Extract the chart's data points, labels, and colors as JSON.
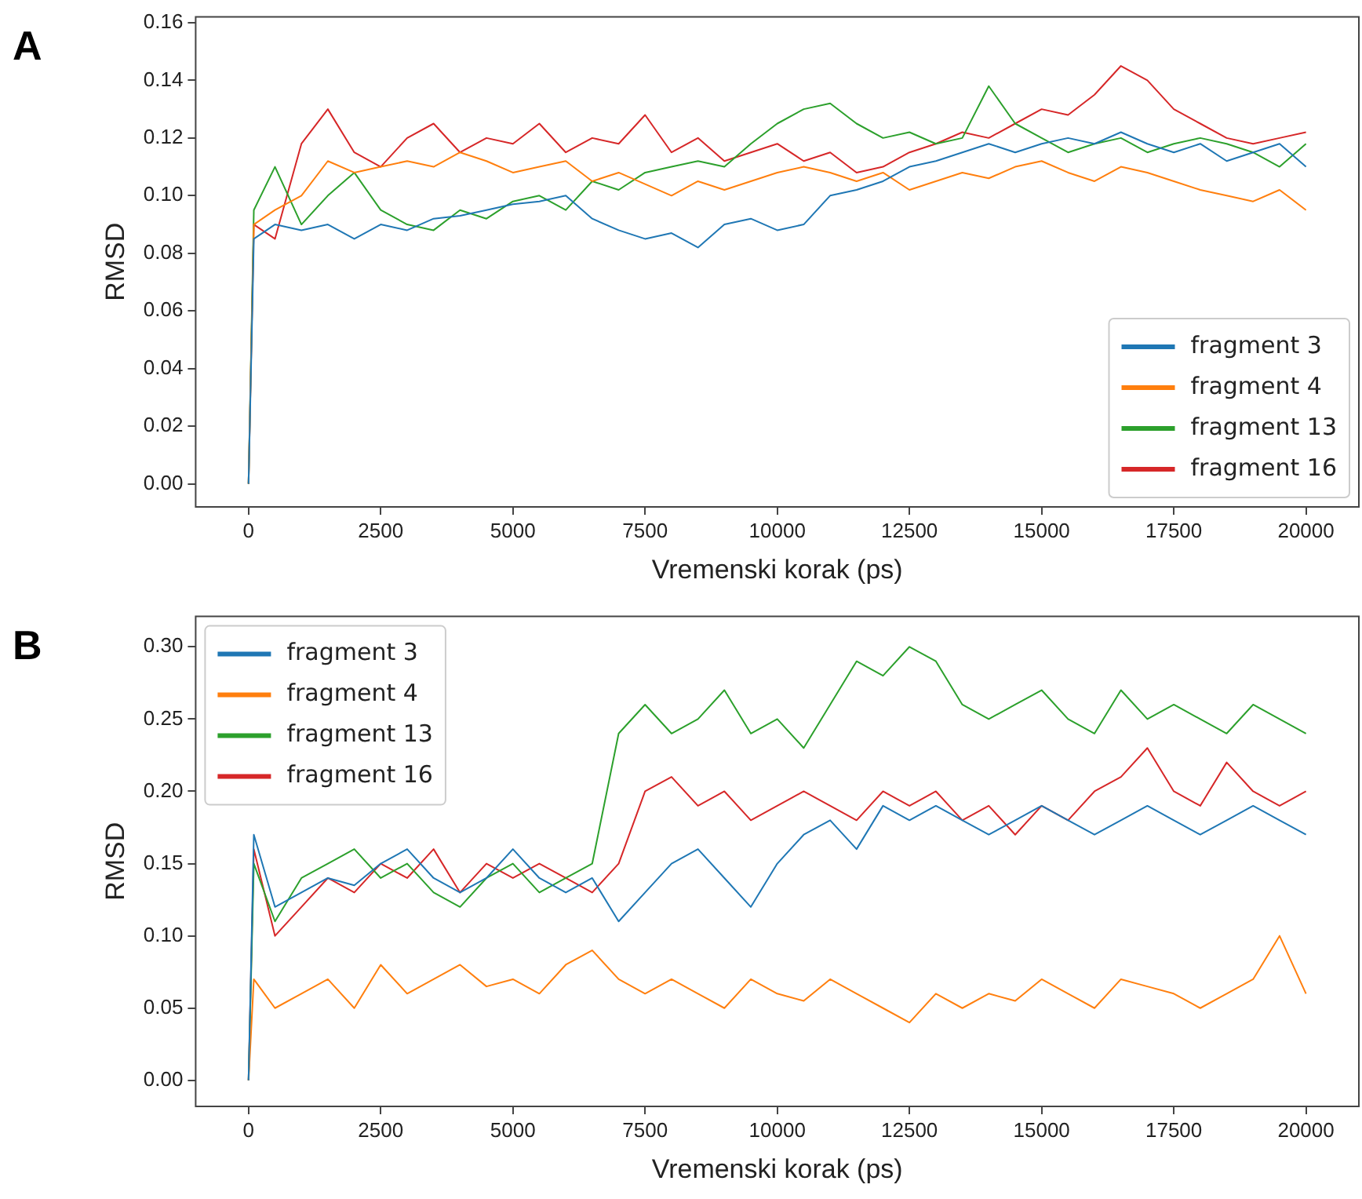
{
  "chart_data": [
    {
      "type": "line",
      "title": "A",
      "xlabel": "Vremenski korak (ps)",
      "ylabel": "RMSD",
      "legend": "bottom right",
      "grid": false,
      "marker": "none",
      "x": [
        0,
        100,
        500,
        1000,
        1500,
        2000,
        2500,
        3000,
        3500,
        4000,
        4500,
        5000,
        5500,
        6000,
        6500,
        7000,
        7500,
        8000,
        8500,
        9000,
        9500,
        10000,
        10500,
        11000,
        11500,
        12000,
        12500,
        13000,
        13500,
        14000,
        14500,
        15000,
        15500,
        16000,
        16500,
        17000,
        17500,
        18000,
        18500,
        19000,
        19500,
        20000
      ],
      "xlim": [
        -1000,
        21000
      ],
      "xticks": [
        0,
        2500,
        5000,
        7500,
        10000,
        12500,
        15000,
        17500,
        20000
      ],
      "ylim": [
        -0.008,
        0.162
      ],
      "yticks": [
        {
          "value": 0,
          "label": "0.00"
        },
        {
          "value": 0.02,
          "label": "0.02"
        },
        {
          "value": 0.04,
          "label": "0.04"
        },
        {
          "value": 0.06,
          "label": "0.06"
        },
        {
          "value": 0.08,
          "label": "0.08"
        },
        {
          "value": 0.1,
          "label": "0.10"
        },
        {
          "value": 0.12,
          "label": "0.12"
        },
        {
          "value": 0.14,
          "label": "0.14"
        },
        {
          "value": 0.16,
          "label": "0.16"
        }
      ],
      "series": [
        {
          "name": "fragment 3",
          "color": "#1f77b4",
          "values": [
            0,
            0.085,
            0.09,
            0.088,
            0.09,
            0.085,
            0.09,
            0.088,
            0.092,
            0.093,
            0.095,
            0.097,
            0.098,
            0.1,
            0.092,
            0.088,
            0.085,
            0.087,
            0.082,
            0.09,
            0.092,
            0.088,
            0.09,
            0.1,
            0.102,
            0.105,
            0.11,
            0.112,
            0.115,
            0.118,
            0.115,
            0.118,
            0.12,
            0.118,
            0.122,
            0.118,
            0.115,
            0.118,
            0.112,
            0.115,
            0.118,
            0.11
          ]
        },
        {
          "name": "fragment 4",
          "color": "#ff7f0e",
          "values": [
            0,
            0.09,
            0.095,
            0.1,
            0.112,
            0.108,
            0.11,
            0.112,
            0.11,
            0.115,
            0.112,
            0.108,
            0.11,
            0.112,
            0.105,
            0.108,
            0.104,
            0.1,
            0.105,
            0.102,
            0.105,
            0.108,
            0.11,
            0.108,
            0.105,
            0.108,
            0.102,
            0.105,
            0.108,
            0.106,
            0.11,
            0.112,
            0.108,
            0.105,
            0.11,
            0.108,
            0.105,
            0.102,
            0.1,
            0.098,
            0.102,
            0.095
          ]
        },
        {
          "name": "fragment 13",
          "color": "#2ca02c",
          "values": [
            0,
            0.095,
            0.11,
            0.09,
            0.1,
            0.108,
            0.095,
            0.09,
            0.088,
            0.095,
            0.092,
            0.098,
            0.1,
            0.095,
            0.105,
            0.102,
            0.108,
            0.11,
            0.112,
            0.11,
            0.118,
            0.125,
            0.13,
            0.132,
            0.125,
            0.12,
            0.122,
            0.118,
            0.12,
            0.138,
            0.125,
            0.12,
            0.115,
            0.118,
            0.12,
            0.115,
            0.118,
            0.12,
            0.118,
            0.115,
            0.11,
            0.118
          ]
        },
        {
          "name": "fragment 16",
          "color": "#d62728",
          "values": [
            0,
            0.09,
            0.085,
            0.118,
            0.13,
            0.115,
            0.11,
            0.12,
            0.125,
            0.115,
            0.12,
            0.118,
            0.125,
            0.115,
            0.12,
            0.118,
            0.128,
            0.115,
            0.12,
            0.112,
            0.115,
            0.118,
            0.112,
            0.115,
            0.108,
            0.11,
            0.115,
            0.118,
            0.122,
            0.12,
            0.125,
            0.13,
            0.128,
            0.135,
            0.145,
            0.14,
            0.13,
            0.125,
            0.12,
            0.118,
            0.12,
            0.122
          ]
        }
      ]
    },
    {
      "type": "line",
      "title": "B",
      "xlabel": "Vremenski korak (ps)",
      "ylabel": "RMSD",
      "legend": "top left",
      "grid": false,
      "marker": "none",
      "x": [
        0,
        100,
        500,
        1000,
        1500,
        2000,
        2500,
        3000,
        3500,
        4000,
        4500,
        5000,
        5500,
        6000,
        6500,
        7000,
        7500,
        8000,
        8500,
        9000,
        9500,
        10000,
        10500,
        11000,
        11500,
        12000,
        12500,
        13000,
        13500,
        14000,
        14500,
        15000,
        15500,
        16000,
        16500,
        17000,
        17500,
        18000,
        18500,
        19000,
        19500,
        20000
      ],
      "xlim": [
        -1000,
        21000
      ],
      "xticks": [
        0,
        2500,
        5000,
        7500,
        10000,
        12500,
        15000,
        17500,
        20000
      ],
      "ylim": [
        -0.018,
        0.321
      ],
      "yticks": [
        {
          "value": 0,
          "label": "0.00"
        },
        {
          "value": 0.05,
          "label": "0.05"
        },
        {
          "value": 0.1,
          "label": "0.10"
        },
        {
          "value": 0.15,
          "label": "0.15"
        },
        {
          "value": 0.2,
          "label": "0.20"
        },
        {
          "value": 0.25,
          "label": "0.25"
        },
        {
          "value": 0.3,
          "label": "0.30"
        }
      ],
      "series": [
        {
          "name": "fragment 3",
          "color": "#1f77b4",
          "values": [
            0,
            0.17,
            0.12,
            0.13,
            0.14,
            0.135,
            0.15,
            0.16,
            0.14,
            0.13,
            0.14,
            0.16,
            0.14,
            0.13,
            0.14,
            0.11,
            0.13,
            0.15,
            0.16,
            0.14,
            0.12,
            0.15,
            0.17,
            0.18,
            0.16,
            0.19,
            0.18,
            0.19,
            0.18,
            0.17,
            0.18,
            0.19,
            0.18,
            0.17,
            0.18,
            0.19,
            0.18,
            0.17,
            0.18,
            0.19,
            0.18,
            0.17
          ]
        },
        {
          "name": "fragment 4",
          "color": "#ff7f0e",
          "values": [
            0,
            0.07,
            0.05,
            0.06,
            0.07,
            0.05,
            0.08,
            0.06,
            0.07,
            0.08,
            0.065,
            0.07,
            0.06,
            0.08,
            0.09,
            0.07,
            0.06,
            0.07,
            0.06,
            0.05,
            0.07,
            0.06,
            0.055,
            0.07,
            0.06,
            0.05,
            0.04,
            0.06,
            0.05,
            0.06,
            0.055,
            0.07,
            0.06,
            0.05,
            0.07,
            0.065,
            0.06,
            0.05,
            0.06,
            0.07,
            0.1,
            0.06
          ]
        },
        {
          "name": "fragment 13",
          "color": "#2ca02c",
          "values": [
            0,
            0.15,
            0.11,
            0.14,
            0.15,
            0.16,
            0.14,
            0.15,
            0.13,
            0.12,
            0.14,
            0.15,
            0.13,
            0.14,
            0.15,
            0.24,
            0.26,
            0.24,
            0.25,
            0.27,
            0.24,
            0.25,
            0.23,
            0.26,
            0.29,
            0.28,
            0.3,
            0.29,
            0.26,
            0.25,
            0.26,
            0.27,
            0.25,
            0.24,
            0.27,
            0.25,
            0.26,
            0.25,
            0.24,
            0.26,
            0.25,
            0.24
          ]
        },
        {
          "name": "fragment 16",
          "color": "#d62728",
          "values": [
            0,
            0.16,
            0.1,
            0.12,
            0.14,
            0.13,
            0.15,
            0.14,
            0.16,
            0.13,
            0.15,
            0.14,
            0.15,
            0.14,
            0.13,
            0.15,
            0.2,
            0.21,
            0.19,
            0.2,
            0.18,
            0.19,
            0.2,
            0.19,
            0.18,
            0.2,
            0.19,
            0.2,
            0.18,
            0.19,
            0.17,
            0.19,
            0.18,
            0.2,
            0.21,
            0.23,
            0.2,
            0.19,
            0.22,
            0.2,
            0.19,
            0.2
          ]
        }
      ]
    }
  ]
}
